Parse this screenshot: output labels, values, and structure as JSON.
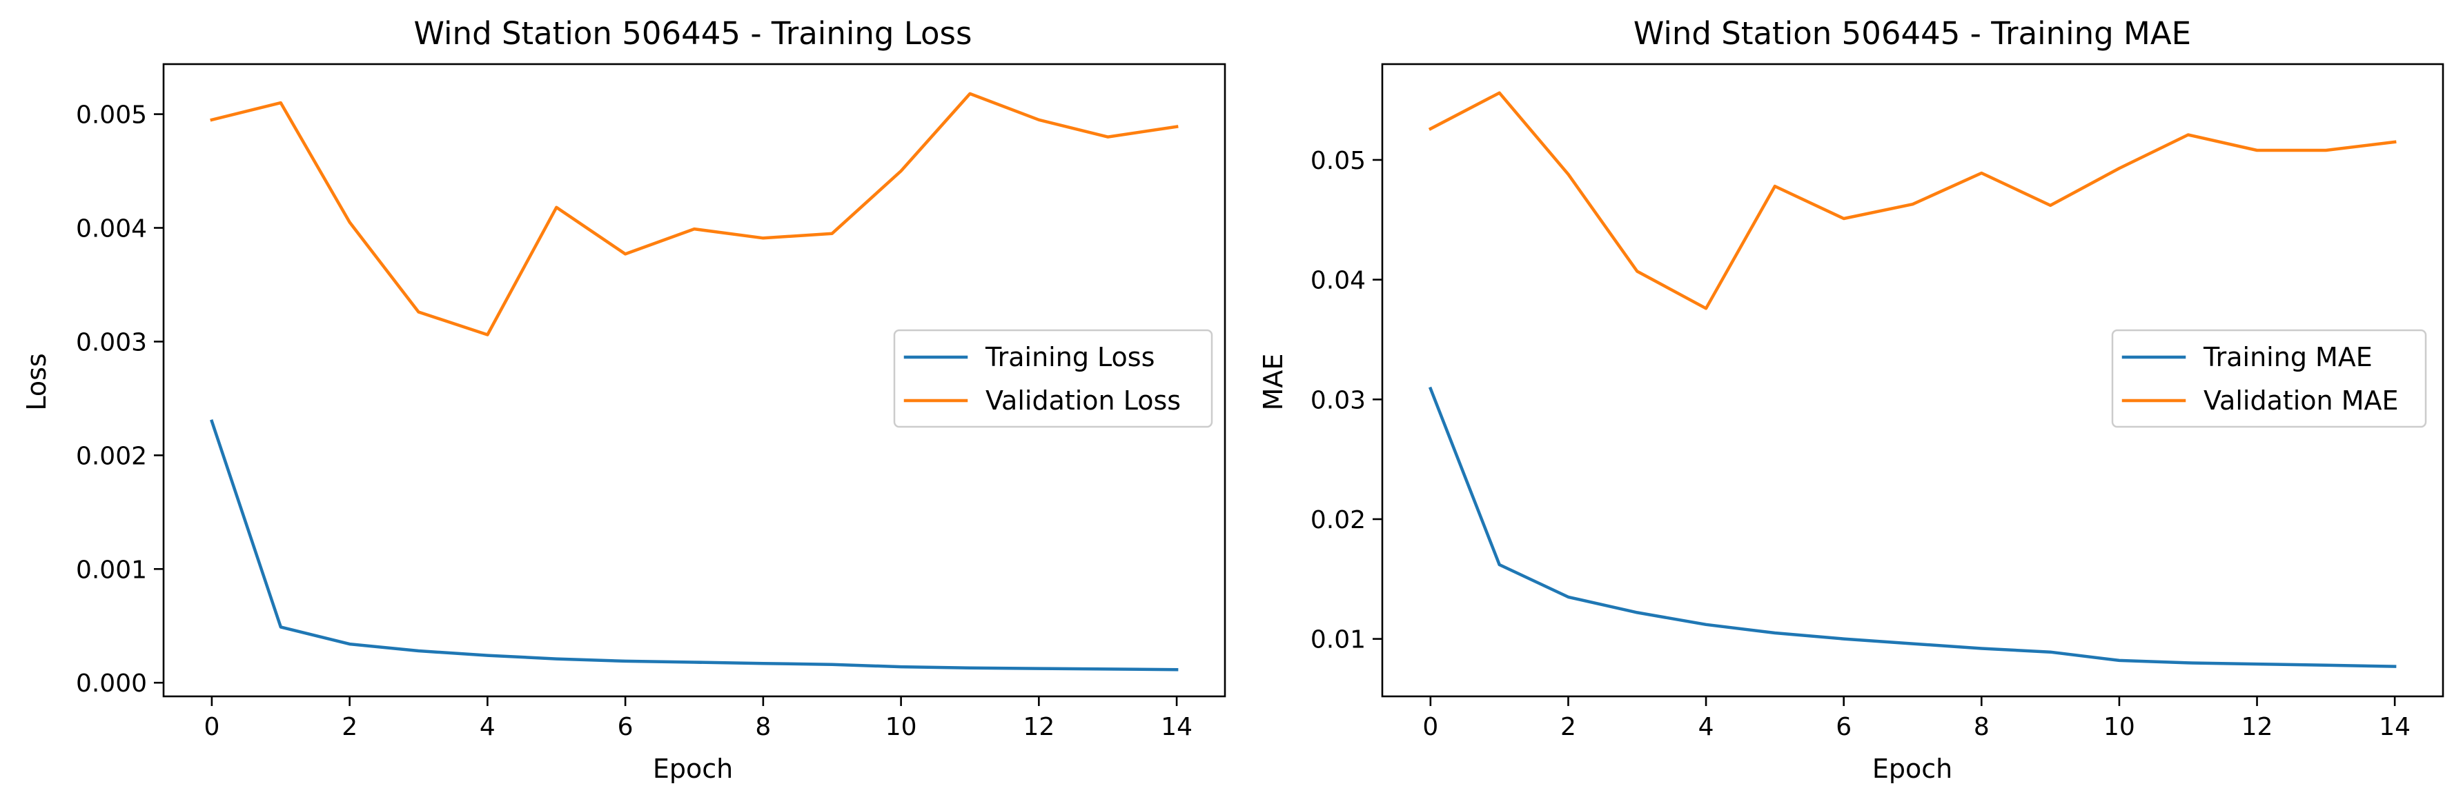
{
  "chart_data": [
    {
      "type": "line",
      "title": "Wind Station 506445 - Training Loss",
      "xlabel": "Epoch",
      "ylabel": "Loss",
      "x": [
        0,
        1,
        2,
        3,
        4,
        5,
        6,
        7,
        8,
        9,
        10,
        11,
        12,
        13,
        14
      ],
      "xlim": [
        -0.7,
        14.7
      ],
      "ylim": [
        -0.00012,
        0.00544
      ],
      "xticks": [
        0,
        2,
        4,
        6,
        8,
        10,
        12,
        14
      ],
      "xtick_labels": [
        "0",
        "2",
        "4",
        "6",
        "8",
        "10",
        "12",
        "14"
      ],
      "yticks": [
        0,
        0.001,
        0.002,
        0.003,
        0.004,
        0.005
      ],
      "ytick_labels": [
        "0.000",
        "0.001",
        "0.002",
        "0.003",
        "0.004",
        "0.005"
      ],
      "legend_position": "center-right",
      "grid": false,
      "series": [
        {
          "name": "Training Loss",
          "color": "#1f77b4",
          "values": [
            0.0023,
            0.00049,
            0.00034,
            0.00028,
            0.00024,
            0.00021,
            0.00019,
            0.00018,
            0.00017,
            0.00016,
            0.00014,
            0.00013,
            0.000125,
            0.00012,
            0.000115
          ]
        },
        {
          "name": "Validation Loss",
          "color": "#ff7f0e",
          "values": [
            0.00495,
            0.0051,
            0.00405,
            0.00326,
            0.00306,
            0.00418,
            0.00377,
            0.00399,
            0.00391,
            0.00395,
            0.0045,
            0.00518,
            0.00495,
            0.0048,
            0.00489
          ]
        }
      ]
    },
    {
      "type": "line",
      "title": "Wind Station 506445 - Training MAE",
      "xlabel": "Epoch",
      "ylabel": "MAE",
      "x": [
        0,
        1,
        2,
        3,
        4,
        5,
        6,
        7,
        8,
        9,
        10,
        11,
        12,
        13,
        14
      ],
      "xlim": [
        -0.7,
        14.7
      ],
      "ylim": [
        0.0052,
        0.058
      ],
      "xticks": [
        0,
        2,
        4,
        6,
        8,
        10,
        12,
        14
      ],
      "xtick_labels": [
        "0",
        "2",
        "4",
        "6",
        "8",
        "10",
        "12",
        "14"
      ],
      "yticks": [
        0.01,
        0.02,
        0.03,
        0.04,
        0.05
      ],
      "ytick_labels": [
        "0.01",
        "0.02",
        "0.03",
        "0.04",
        "0.05"
      ],
      "legend_position": "center-right",
      "grid": false,
      "series": [
        {
          "name": "Training MAE",
          "color": "#1f77b4",
          "values": [
            0.0309,
            0.0162,
            0.0135,
            0.0122,
            0.0112,
            0.0105,
            0.01,
            0.0096,
            0.0092,
            0.0089,
            0.0082,
            0.008,
            0.0079,
            0.0078,
            0.0077
          ]
        },
        {
          "name": "Validation MAE",
          "color": "#ff7f0e",
          "values": [
            0.0526,
            0.0556,
            0.0488,
            0.0407,
            0.0376,
            0.0478,
            0.0451,
            0.0463,
            0.0489,
            0.0462,
            0.0493,
            0.0521,
            0.0508,
            0.0508,
            0.0515
          ]
        }
      ]
    }
  ]
}
